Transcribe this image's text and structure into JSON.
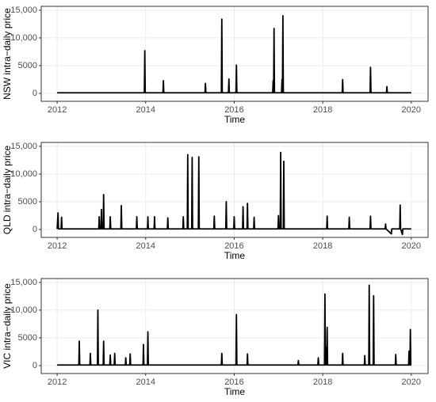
{
  "chart_data": [
    {
      "type": "line",
      "ylabel": "NSW intra−daily price",
      "xlabel": "Time",
      "color": "#000000",
      "grid": true,
      "xlim": [
        2011.64,
        2020.38
      ],
      "xticks": [
        2012,
        2014,
        2016,
        2018,
        2020
      ],
      "ylim": [
        -1430,
        15700
      ],
      "yticks": [
        0,
        5000,
        {
          "value": 10000,
          "label": "10,000"
        },
        {
          "value": 15000,
          "label": "15,000"
        }
      ],
      "x": [
        2012.0,
        2013.97,
        2013.98,
        2013.99,
        2014.39,
        2014.4,
        2014.41,
        2015.34,
        2015.35,
        2015.36,
        2015.71,
        2015.72,
        2015.73,
        2015.87,
        2015.88,
        2015.89,
        2016.04,
        2016.05,
        2016.06,
        2016.87,
        2016.88,
        2016.89,
        2016.9,
        2016.91,
        2017.07,
        2017.08,
        2017.09,
        2017.1,
        2017.11,
        2018.44,
        2018.45,
        2018.46,
        2019.07,
        2019.08,
        2019.09,
        2019.44,
        2019.45,
        2019.46,
        2020.0
      ],
      "values": [
        100,
        100,
        7700,
        100,
        100,
        2300,
        100,
        100,
        1800,
        100,
        100,
        13400,
        100,
        100,
        2600,
        100,
        100,
        5100,
        100,
        100,
        2300,
        100,
        11700,
        100,
        100,
        2500,
        100,
        14000,
        100,
        100,
        2500,
        100,
        100,
        4700,
        100,
        100,
        1200,
        100,
        100
      ]
    },
    {
      "type": "line",
      "ylabel": "QLD intra−daily price",
      "xlabel": "Time",
      "color": "#000000",
      "grid": true,
      "xlim": [
        2011.64,
        2020.38
      ],
      "xticks": [
        2012,
        2014,
        2016,
        2018,
        2020
      ],
      "ylim": [
        -1430,
        15700
      ],
      "yticks": [
        0,
        5000,
        {
          "value": 10000,
          "label": "10,000"
        },
        {
          "value": 15000,
          "label": "15,000"
        }
      ],
      "x": [
        2012.0,
        2012.02,
        2012.03,
        2012.09,
        2012.1,
        2012.11,
        2012.94,
        2012.95,
        2012.96,
        2012.99,
        2013.0,
        2013.01,
        2013.04,
        2013.05,
        2013.06,
        2013.19,
        2013.2,
        2013.21,
        2013.44,
        2013.45,
        2013.46,
        2013.79,
        2013.8,
        2013.81,
        2014.04,
        2014.05,
        2014.06,
        2014.19,
        2014.2,
        2014.21,
        2014.49,
        2014.5,
        2014.51,
        2014.84,
        2014.85,
        2014.86,
        2014.94,
        2014.95,
        2014.96,
        2015.04,
        2015.05,
        2015.06,
        2015.19,
        2015.2,
        2015.21,
        2015.54,
        2015.55,
        2015.56,
        2015.81,
        2015.82,
        2015.83,
        2015.99,
        2016.0,
        2016.01,
        2016.19,
        2016.2,
        2016.21,
        2016.29,
        2016.3,
        2016.31,
        2016.44,
        2016.45,
        2016.46,
        2016.99,
        2017.0,
        2017.01,
        2017.04,
        2017.05,
        2017.06,
        2017.11,
        2017.12,
        2017.13,
        2018.09,
        2018.1,
        2018.11,
        2018.59,
        2018.6,
        2018.61,
        2019.07,
        2019.08,
        2019.09,
        2019.41,
        2019.42,
        2019.43,
        2019.55,
        2019.56,
        2019.74,
        2019.75,
        2019.76,
        2019.8,
        2019.81,
        2020.0
      ],
      "values": [
        100,
        3000,
        100,
        100,
        2200,
        100,
        100,
        2300,
        100,
        100,
        3600,
        100,
        100,
        6300,
        100,
        100,
        2300,
        100,
        100,
        4300,
        100,
        100,
        2300,
        100,
        100,
        2300,
        100,
        100,
        2300,
        100,
        100,
        2100,
        100,
        100,
        2300,
        100,
        100,
        13500,
        100,
        100,
        13000,
        100,
        100,
        13100,
        100,
        100,
        2400,
        100,
        100,
        5000,
        100,
        100,
        2300,
        100,
        100,
        4100,
        100,
        100,
        4700,
        100,
        100,
        2200,
        100,
        100,
        2500,
        100,
        100,
        13900,
        100,
        100,
        12300,
        100,
        100,
        2400,
        100,
        100,
        2200,
        100,
        100,
        2400,
        100,
        100,
        1000,
        100,
        -800,
        100,
        100,
        4400,
        100,
        -900,
        100,
        100
      ]
    },
    {
      "type": "line",
      "ylabel": "VIC intra−daily price",
      "xlabel": "Time",
      "color": "#000000",
      "grid": true,
      "xlim": [
        2011.64,
        2020.38
      ],
      "xticks": [
        2012,
        2014,
        2016,
        2018,
        2020
      ],
      "ylim": [
        -1430,
        15700
      ],
      "yticks": [
        0,
        5000,
        {
          "value": 10000,
          "label": "10,000"
        },
        {
          "value": 15000,
          "label": "15,000"
        }
      ],
      "x": [
        2012.0,
        2012.49,
        2012.5,
        2012.51,
        2012.74,
        2012.75,
        2012.76,
        2012.91,
        2012.92,
        2012.93,
        2013.04,
        2013.05,
        2013.06,
        2013.19,
        2013.2,
        2013.21,
        2013.29,
        2013.3,
        2013.31,
        2013.54,
        2013.55,
        2013.56,
        2013.64,
        2013.65,
        2013.66,
        2013.94,
        2013.95,
        2013.96,
        2014.04,
        2014.05,
        2014.06,
        2015.71,
        2015.72,
        2015.73,
        2016.04,
        2016.05,
        2016.06,
        2016.29,
        2016.3,
        2016.31,
        2017.44,
        2017.45,
        2017.46,
        2017.89,
        2017.9,
        2017.91,
        2018.04,
        2018.05,
        2018.06,
        2018.07,
        2018.08,
        2018.09,
        2018.1,
        2018.11,
        2018.44,
        2018.45,
        2018.46,
        2018.94,
        2018.95,
        2018.96,
        2019.04,
        2019.05,
        2019.06,
        2019.14,
        2019.15,
        2019.16,
        2019.64,
        2019.65,
        2019.66,
        2019.94,
        2019.95,
        2019.96,
        2019.97,
        2019.98,
        2019.99,
        2020.0
      ],
      "values": [
        100,
        100,
        4400,
        100,
        100,
        2200,
        100,
        100,
        10000,
        100,
        100,
        4400,
        100,
        100,
        1900,
        100,
        100,
        2200,
        100,
        100,
        1400,
        100,
        100,
        2100,
        100,
        100,
        3800,
        100,
        100,
        6100,
        100,
        100,
        2200,
        100,
        100,
        9200,
        100,
        100,
        2100,
        100,
        100,
        900,
        100,
        100,
        1400,
        100,
        100,
        12900,
        100,
        100,
        3300,
        100,
        6900,
        100,
        100,
        2200,
        100,
        100,
        1800,
        100,
        100,
        14500,
        100,
        100,
        12600,
        100,
        100,
        2000,
        100,
        100,
        2600,
        100,
        100,
        6500,
        100,
        100
      ]
    }
  ]
}
